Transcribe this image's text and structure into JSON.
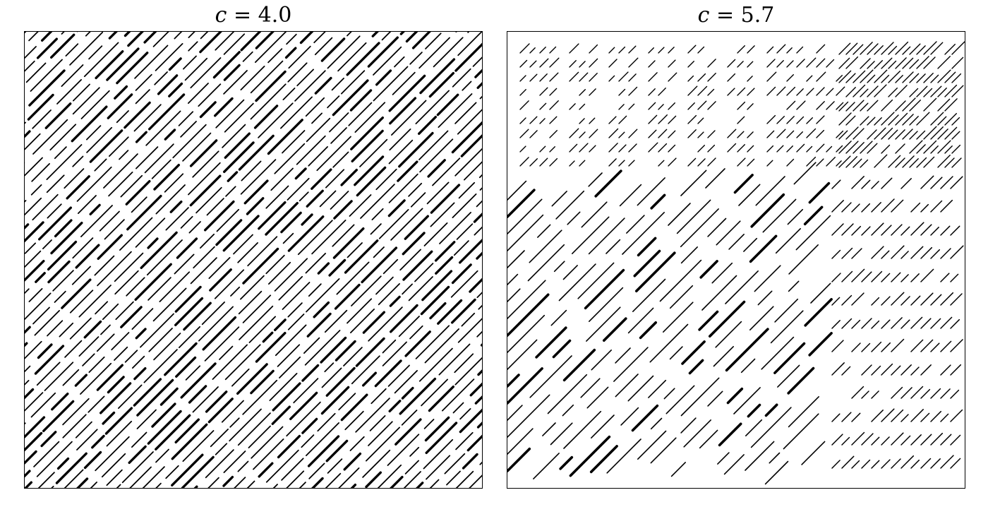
{
  "panels": [
    {
      "title_var": "c",
      "title_eq": "=",
      "title_val": "4.0"
    },
    {
      "title_var": "c",
      "title_eq": "=",
      "title_val": "5.7"
    }
  ]
}
